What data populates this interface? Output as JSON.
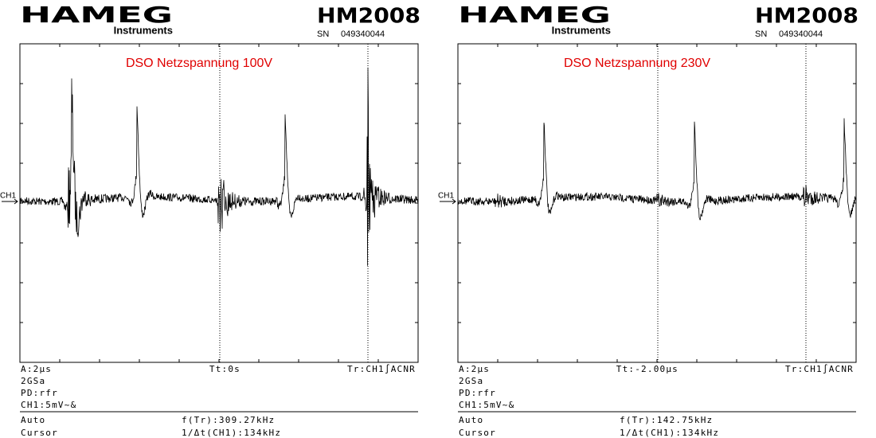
{
  "panels": [
    {
      "brand": "HAMEG",
      "brand_sub": "Instruments",
      "model": "HM2008",
      "serial_label": "SN",
      "serial": "049340044",
      "title": "DSO Netzspannung 100V",
      "channel_marker": "CH1",
      "status": {
        "timebase": "A:2µs",
        "trigger_time": "Tt:0s",
        "trigger": "Tr:CH1∫ACNR",
        "sample_rate": "2GSa",
        "mode": "PD:rfr",
        "channel": "CH1:5mV~&"
      },
      "footer": {
        "acq_label": "Auto",
        "freq": "f(Tr):309.27kHz",
        "cursor_label": "Cursor",
        "cursor": "1/Δt(CH1):134kHz"
      }
    },
    {
      "brand": "HAMEG",
      "brand_sub": "Instruments",
      "model": "HM2008",
      "serial_label": "SN",
      "serial": "049340044",
      "title": "DSO Netzspannung 230V",
      "channel_marker": "CH1",
      "status": {
        "timebase": "A:2µs",
        "trigger_time": "Tt:-2.00µs",
        "trigger": "Tr:CH1∫ACNR",
        "sample_rate": "2GSa",
        "mode": "PD:rfr",
        "channel": "CH1:5mV~&"
      },
      "footer": {
        "acq_label": "Auto",
        "freq": "f(Tr):142.75kHz",
        "cursor_label": "Cursor",
        "cursor": "1/Δt(CH1):134kHz"
      }
    }
  ]
}
